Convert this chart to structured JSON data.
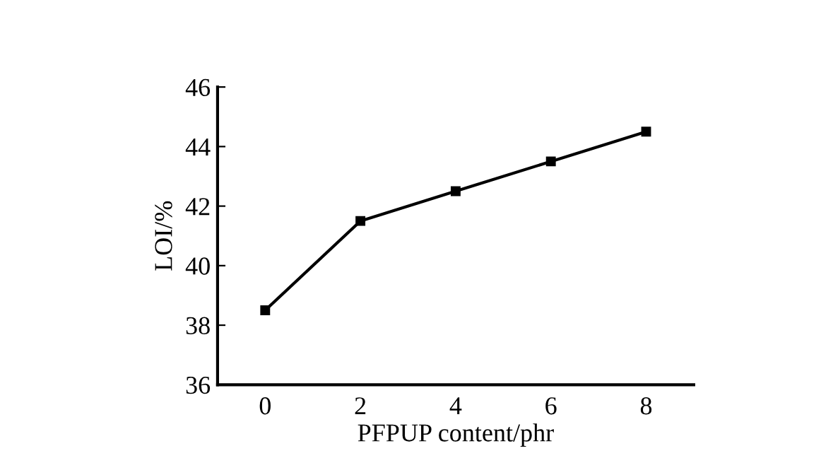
{
  "chart_data": {
    "type": "line",
    "xlabel": "PFPUP content/phr",
    "ylabel": "LOI/%",
    "x": [
      0,
      2,
      4,
      6,
      8
    ],
    "series": [
      {
        "color": "#000000",
        "values": [
          38.5,
          41.5,
          42.5,
          43.5,
          44.5
        ]
      }
    ],
    "xlim": [
      -1,
      9
    ],
    "xticks": [
      0,
      2,
      4,
      6,
      8
    ],
    "ylim": [
      36,
      46
    ],
    "yticks": [
      36,
      38,
      40,
      42,
      44,
      46
    ],
    "marker": "square",
    "line_style": "solid",
    "grid": false,
    "legend": false
  }
}
